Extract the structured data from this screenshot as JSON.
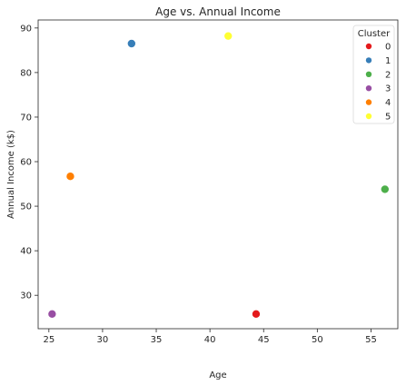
{
  "chart_data": {
    "type": "scatter",
    "title": "Age vs. Annual Income",
    "xlabel": "Age",
    "ylabel": "Annual Income (k$)",
    "xlim": [
      24.0,
      57.5
    ],
    "ylim": [
      22.5,
      91.8
    ],
    "xticks": [
      25,
      30,
      35,
      40,
      45,
      50,
      55
    ],
    "yticks": [
      30,
      40,
      50,
      60,
      70,
      80,
      90
    ],
    "grid": false,
    "legend": {
      "title": "Cluster",
      "placement": "top-right"
    },
    "series": [
      {
        "name": "0",
        "color": "#e41a1c",
        "x": [
          44.3
        ],
        "y": [
          25.8
        ]
      },
      {
        "name": "1",
        "color": "#377eb8",
        "x": [
          32.7
        ],
        "y": [
          86.5
        ]
      },
      {
        "name": "2",
        "color": "#4daf4a",
        "x": [
          56.3
        ],
        "y": [
          53.8
        ]
      },
      {
        "name": "3",
        "color": "#984ea3",
        "x": [
          25.3
        ],
        "y": [
          25.8
        ]
      },
      {
        "name": "4",
        "color": "#ff7f00",
        "x": [
          27.0
        ],
        "y": [
          56.7
        ]
      },
      {
        "name": "5",
        "color": "#ffff33",
        "x": [
          41.7
        ],
        "y": [
          88.2
        ]
      }
    ]
  }
}
